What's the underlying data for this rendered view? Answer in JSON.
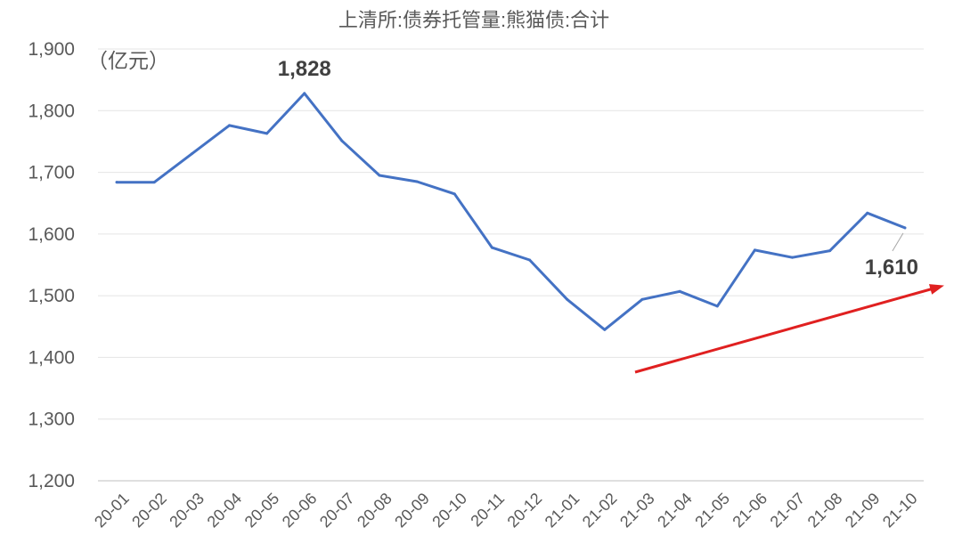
{
  "chart_data": {
    "type": "line",
    "title": "上清所:债券托管量:熊猫债:合计",
    "unit_label": "（亿元）",
    "x": [
      "20-01",
      "20-02",
      "20-03",
      "20-04",
      "20-05",
      "20-06",
      "20-07",
      "20-08",
      "20-09",
      "20-10",
      "20-11",
      "20-12",
      "21-01",
      "21-02",
      "21-03",
      "21-04",
      "21-05",
      "21-06",
      "21-07",
      "21-08",
      "21-09",
      "21-10"
    ],
    "series": [
      {
        "name": "",
        "values": [
          1684,
          1684,
          1730,
          1776,
          1763,
          1828,
          1751,
          1695,
          1685,
          1665,
          1578,
          1558,
          1494,
          1445,
          1494,
          1507,
          1483,
          1574,
          1562,
          1573,
          1634,
          1610
        ],
        "color": "#4472C4"
      }
    ],
    "ylim": [
      1200,
      1900
    ],
    "yticks": [
      1200,
      1300,
      1400,
      1500,
      1600,
      1700,
      1800,
      1900
    ],
    "ytick_labels": [
      "1,200",
      "1,300",
      "1,400",
      "1,500",
      "1,600",
      "1,700",
      "1,800",
      "1,900"
    ],
    "data_labels": [
      {
        "index": 5,
        "text": "1,828"
      },
      {
        "index": 21,
        "text": "1,610"
      }
    ],
    "grid": true,
    "annotation_arrow": {
      "color": "#E02020",
      "meaning": "upward trend"
    }
  }
}
